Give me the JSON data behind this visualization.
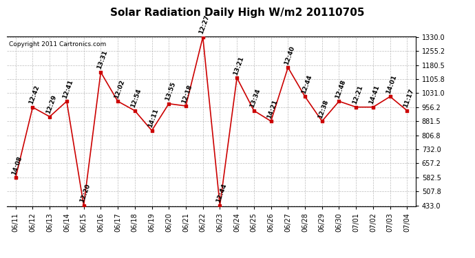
{
  "title": "Solar Radiation Daily High W/m2 20110705",
  "copyright": "Copyright 2011 Cartronics.com",
  "dates": [
    "06/11",
    "06/12",
    "06/13",
    "06/14",
    "06/15",
    "06/16",
    "06/17",
    "06/18",
    "06/19",
    "06/20",
    "06/21",
    "06/22",
    "06/23",
    "06/24",
    "06/25",
    "06/26",
    "06/27",
    "06/28",
    "06/29",
    "06/30",
    "07/01",
    "07/02",
    "07/03",
    "07/04"
  ],
  "values": [
    582,
    956,
    906,
    988,
    433,
    1143,
    988,
    938,
    832,
    975,
    963,
    1330,
    433,
    1113,
    938,
    882,
    1168,
    1013,
    882,
    988,
    957,
    957,
    1013,
    938
  ],
  "labels": [
    "14:08",
    "12:42",
    "12:29",
    "12:41",
    "12:20",
    "13:31",
    "12:02",
    "12:54",
    "14:11",
    "13:55",
    "12:18",
    "12:27",
    "12:44",
    "13:21",
    "13:34",
    "14:21",
    "12:40",
    "12:44",
    "12:38",
    "12:48",
    "12:21",
    "14:41",
    "14:01",
    "11:17"
  ],
  "line_color": "#cc0000",
  "marker_color": "#cc0000",
  "bg_color": "#ffffff",
  "grid_color": "#bbbbbb",
  "ylim_min": 433.0,
  "ylim_max": 1330.0,
  "yticks": [
    433.0,
    507.8,
    582.5,
    657.2,
    732.0,
    806.8,
    881.5,
    956.2,
    1031.0,
    1105.8,
    1180.5,
    1255.2,
    1330.0
  ],
  "title_fontsize": 11,
  "label_fontsize": 6.5,
  "tick_fontsize": 7,
  "copyright_fontsize": 6.5
}
